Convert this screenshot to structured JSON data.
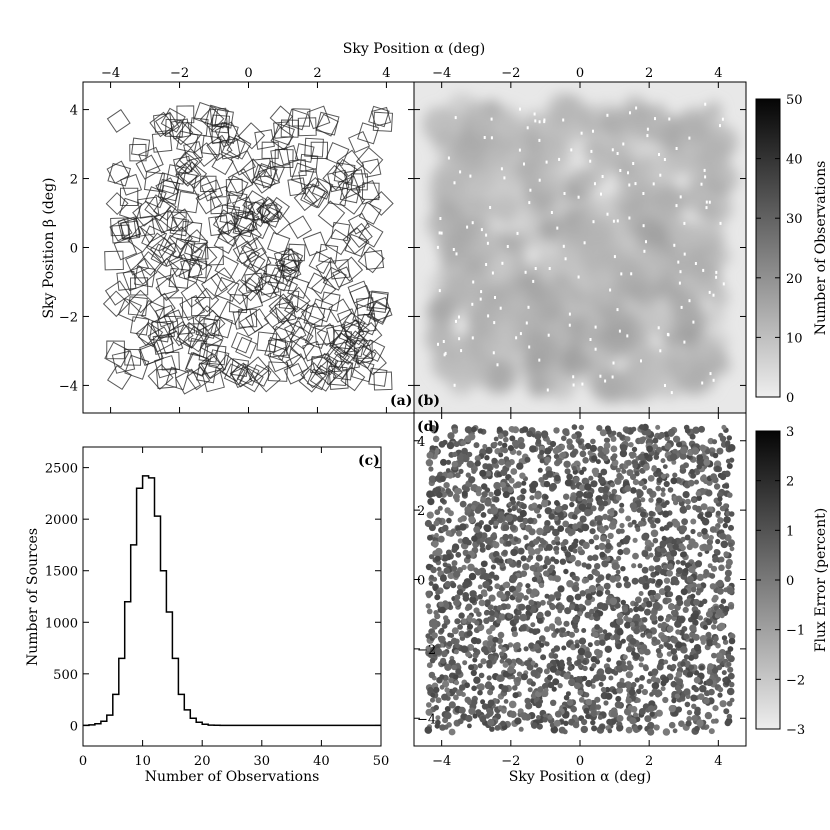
{
  "chart_data": [
    {
      "panel": "(a)",
      "type": "scatter",
      "description_marks": "pointing footprints",
      "top_xlabel": "Sky Position α (deg)",
      "ylabel": "Sky Position β (deg)",
      "xlim": [
        -4.8,
        4.8
      ],
      "ylim": [
        -4.8,
        4.8
      ],
      "xticks": [
        "−4",
        "−2",
        "0",
        "2",
        "4"
      ],
      "yticks": [
        "−4",
        "−2",
        "0",
        "2",
        "4"
      ],
      "label": "(a)"
    },
    {
      "panel": "(b)",
      "type": "heatmap",
      "label": "(b)",
      "xlim": [
        -4.8,
        4.8
      ],
      "ylim": [
        -4.8,
        4.8
      ],
      "xticks": [
        "−4",
        "−2",
        "0",
        "2",
        "4"
      ],
      "colorbar_label": "Number of Observations",
      "colorbar_range": [
        0,
        50
      ],
      "colorbar_ticks": [
        "0",
        "10",
        "20",
        "30",
        "40",
        "50"
      ]
    },
    {
      "panel": "(c)",
      "type": "line",
      "label": "(c)",
      "xlabel": "Number of Observations",
      "ylabel": "Number of Sources",
      "xlim": [
        0,
        50
      ],
      "ylim": [
        -200,
        2700
      ],
      "xticks": [
        "0",
        "10",
        "20",
        "30",
        "40",
        "50"
      ],
      "yticks": [
        "0",
        "500",
        "1000",
        "1500",
        "2000",
        "2500"
      ],
      "x": [
        0,
        1,
        2,
        3,
        4,
        5,
        6,
        7,
        8,
        9,
        10,
        11,
        12,
        13,
        14,
        15,
        16,
        17,
        18,
        19,
        20,
        21,
        22,
        23,
        24,
        25,
        26,
        27,
        28,
        29,
        30,
        31,
        32,
        33,
        34,
        35,
        36,
        37,
        38,
        39,
        40,
        41,
        42,
        43,
        44,
        45,
        46,
        47,
        48,
        49
      ],
      "values": [
        0,
        5,
        15,
        40,
        100,
        300,
        650,
        1200,
        1750,
        2300,
        2420,
        2400,
        2030,
        1500,
        1100,
        650,
        300,
        150,
        70,
        30,
        10,
        3,
        1,
        0,
        0,
        0,
        0,
        0,
        0,
        0,
        0,
        0,
        0,
        0,
        0,
        0,
        0,
        0,
        0,
        0,
        0,
        0,
        0,
        0,
        0,
        0,
        0,
        0,
        0,
        0
      ]
    },
    {
      "panel": "(d)",
      "type": "scatter",
      "label": "(d)",
      "xlabel": "Sky Position α (deg)",
      "xlim": [
        -4.8,
        4.8
      ],
      "ylim": [
        -4.8,
        4.8
      ],
      "xticks": [
        "−4",
        "−2",
        "0",
        "2",
        "4"
      ],
      "yticks": [
        "−4",
        "−2",
        "0",
        "2",
        "4"
      ],
      "colorbar_label": "Flux Error (percent)",
      "colorbar_range": [
        -3,
        3
      ],
      "colorbar_ticks": [
        "−3",
        "−2",
        "−1",
        "0",
        "1",
        "2",
        "3"
      ]
    }
  ]
}
